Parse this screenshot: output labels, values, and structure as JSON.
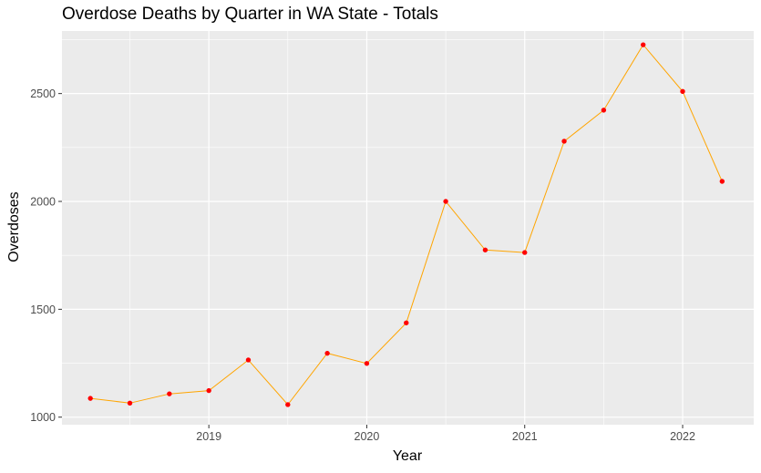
{
  "chart_data": {
    "type": "line",
    "title": "Overdose Deaths by Quarter in WA State - Totals",
    "xlabel": "Year",
    "ylabel": "Overdoses",
    "xlim": [
      2018.07,
      2022.45
    ],
    "ylim": [
      965,
      2790
    ],
    "x_ticks": [
      2019,
      2020,
      2021,
      2022
    ],
    "y_ticks": [
      1000,
      1500,
      2000,
      2500
    ],
    "grid": true,
    "legend": "none",
    "colors": {
      "panel": "#ebebeb",
      "grid_major": "#ffffff",
      "line": "#ffa500",
      "point": "#ff0000",
      "tick_mark": "#333333"
    },
    "series": [
      {
        "x": [
          2018.25,
          2018.5,
          2018.75,
          2019.0,
          2019.25,
          2019.5,
          2019.75,
          2020.0,
          2020.25,
          2020.5,
          2020.75,
          2021.0,
          2021.25,
          2021.5,
          2021.75,
          2022.0,
          2022.25
        ],
        "values": [
          1087,
          1065,
          1108,
          1123,
          1265,
          1058,
          1296,
          1249,
          1437,
          2000,
          1775,
          1763,
          2279,
          2423,
          2726,
          2510,
          2093
        ]
      }
    ]
  }
}
